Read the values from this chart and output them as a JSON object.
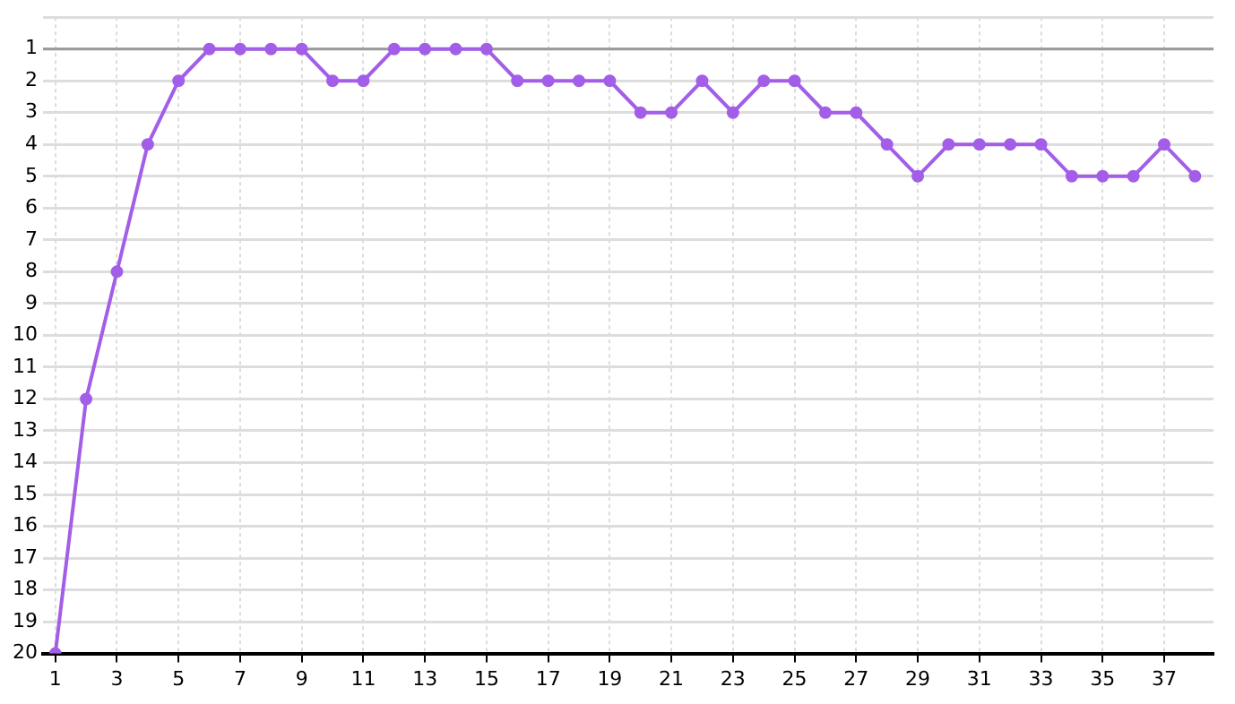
{
  "chart_data": {
    "type": "line",
    "x": [
      1,
      2,
      3,
      4,
      5,
      6,
      7,
      8,
      9,
      10,
      11,
      12,
      13,
      14,
      15,
      16,
      17,
      18,
      19,
      20,
      21,
      22,
      23,
      24,
      25,
      26,
      27,
      28,
      29,
      30,
      31,
      32,
      33,
      34,
      35,
      36,
      37,
      38
    ],
    "series": [
      {
        "color": "#a35ee8",
        "values": [
          20,
          12,
          8,
          4,
          2,
          1,
          1,
          1,
          1,
          2,
          2,
          1,
          1,
          1,
          1,
          2,
          2,
          2,
          2,
          3,
          3,
          2,
          3,
          2,
          2,
          3,
          3,
          4,
          5,
          4,
          4,
          4,
          4,
          5,
          5,
          5,
          4,
          5
        ]
      }
    ],
    "xlim": [
      0.6,
      38.6
    ],
    "xticks": [
      1,
      3,
      5,
      7,
      9,
      11,
      13,
      15,
      17,
      19,
      21,
      23,
      25,
      27,
      29,
      31,
      33,
      35,
      37
    ],
    "ylim": [
      20,
      0
    ],
    "yticks": [
      {
        "value": 0,
        "label": null
      },
      1,
      2,
      3,
      4,
      5,
      6,
      7,
      8,
      9,
      10,
      11,
      12,
      13,
      14,
      15,
      16,
      17,
      18,
      19,
      20
    ],
    "ref_lines": [
      {
        "axis": "y",
        "value": 1,
        "color": "#999999"
      }
    ],
    "grid": true,
    "legend": false,
    "marker": "circle",
    "line_style": "solid"
  }
}
